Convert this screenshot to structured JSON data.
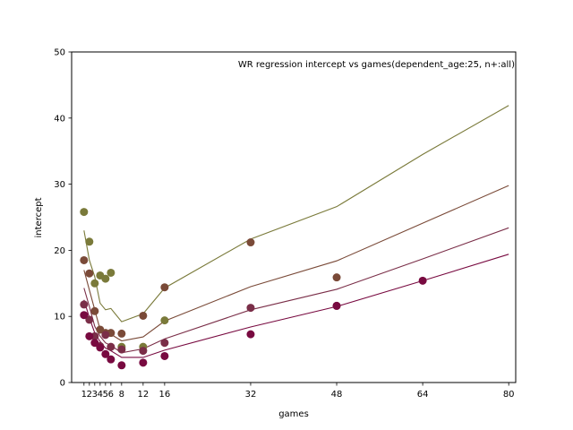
{
  "chart_data": {
    "type": "scatter",
    "title": "WR regression intercept vs games(dependent_age:25, n+:all)",
    "xlabel": "games",
    "ylabel": "intercept",
    "xlim": [
      -1.3,
      81.3
    ],
    "ylim": [
      0,
      50
    ],
    "xticks": [
      1,
      2,
      3,
      4,
      5,
      6,
      8,
      12,
      16,
      32,
      48,
      64,
      80
    ],
    "yticks": [
      0,
      10,
      20,
      30,
      40,
      50
    ],
    "grid": false,
    "legend": "none",
    "series": [
      {
        "color": "#7a7a3a",
        "points": [
          [
            1,
            25.8
          ],
          [
            2,
            21.3
          ],
          [
            3,
            15.0
          ],
          [
            4,
            16.2
          ],
          [
            5,
            15.7
          ],
          [
            6,
            16.6
          ],
          [
            8,
            5.4
          ],
          [
            12,
            5.4
          ],
          [
            16,
            9.4
          ]
        ],
        "line": [
          [
            1,
            23.0
          ],
          [
            2,
            18.5
          ],
          [
            3,
            16.0
          ],
          [
            4,
            12.0
          ],
          [
            5,
            11.0
          ],
          [
            6,
            11.2
          ],
          [
            8,
            9.2
          ],
          [
            12,
            10.4
          ],
          [
            16,
            14.3
          ],
          [
            32,
            21.7
          ],
          [
            48,
            26.6
          ],
          [
            64,
            34.5
          ],
          [
            80,
            41.9
          ]
        ]
      },
      {
        "color": "#7a4a38",
        "points": [
          [
            1,
            18.5
          ],
          [
            2,
            16.5
          ],
          [
            3,
            10.8
          ],
          [
            4,
            8.0
          ],
          [
            5,
            7.5
          ],
          [
            6,
            7.5
          ],
          [
            8,
            7.4
          ],
          [
            12,
            10.1
          ],
          [
            16,
            14.4
          ],
          [
            32,
            21.2
          ],
          [
            48,
            15.9
          ]
        ],
        "line": [
          [
            1,
            17.0
          ],
          [
            2,
            14.0
          ],
          [
            3,
            11.0
          ],
          [
            4,
            8.0
          ],
          [
            5,
            7.5
          ],
          [
            6,
            7.3
          ],
          [
            8,
            6.3
          ],
          [
            12,
            6.9
          ],
          [
            16,
            9.3
          ],
          [
            32,
            14.5
          ],
          [
            48,
            18.4
          ],
          [
            64,
            24.1
          ],
          [
            80,
            29.8
          ]
        ]
      },
      {
        "color": "#7a2e48",
        "points": [
          [
            1,
            11.8
          ],
          [
            2,
            9.5
          ],
          [
            3,
            7.0
          ],
          [
            4,
            5.5
          ],
          [
            5,
            7.2
          ],
          [
            6,
            5.4
          ],
          [
            8,
            5.0
          ],
          [
            12,
            4.8
          ],
          [
            16,
            6.0
          ],
          [
            32,
            11.3
          ],
          [
            48,
            11.6
          ]
        ],
        "line": [
          [
            1,
            14.3
          ],
          [
            2,
            11.5
          ],
          [
            3,
            8.5
          ],
          [
            4,
            7.0
          ],
          [
            5,
            6.0
          ],
          [
            6,
            5.6
          ],
          [
            8,
            4.5
          ],
          [
            12,
            5.1
          ],
          [
            16,
            6.6
          ],
          [
            32,
            11.0
          ],
          [
            48,
            14.1
          ],
          [
            64,
            18.7
          ],
          [
            80,
            23.4
          ]
        ]
      },
      {
        "color": "#780a40",
        "points": [
          [
            1,
            10.2
          ],
          [
            2,
            7.0
          ],
          [
            3,
            6.0
          ],
          [
            4,
            5.3
          ],
          [
            5,
            4.3
          ],
          [
            6,
            3.5
          ],
          [
            8,
            2.6
          ],
          [
            12,
            3.0
          ],
          [
            16,
            4.0
          ],
          [
            32,
            7.3
          ],
          [
            48,
            11.6
          ],
          [
            64,
            15.4
          ]
        ],
        "line": [
          [
            1,
            12.5
          ],
          [
            2,
            9.8
          ],
          [
            3,
            7.5
          ],
          [
            4,
            6.2
          ],
          [
            5,
            5.2
          ],
          [
            6,
            4.8
          ],
          [
            8,
            3.8
          ],
          [
            12,
            3.8
          ],
          [
            16,
            4.9
          ],
          [
            32,
            8.4
          ],
          [
            48,
            11.5
          ],
          [
            64,
            15.4
          ],
          [
            80,
            19.4
          ]
        ]
      }
    ]
  }
}
